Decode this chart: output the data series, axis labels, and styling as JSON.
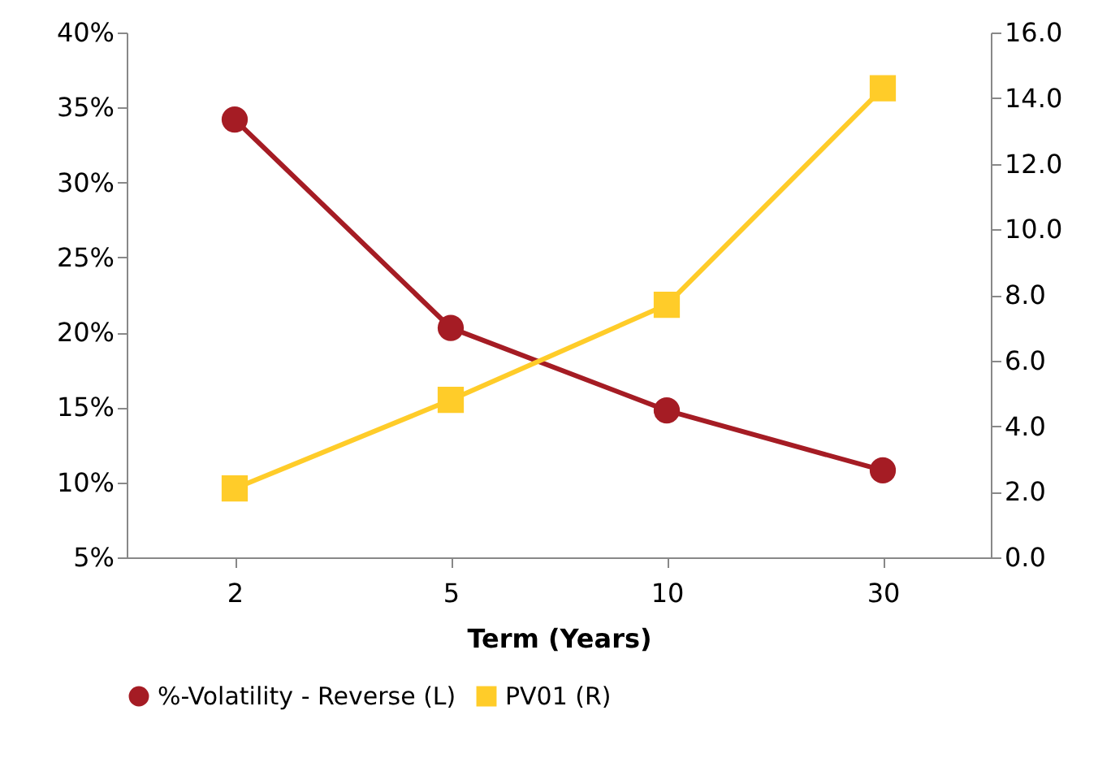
{
  "chart_data": {
    "type": "line",
    "xlabel": "Term (Years)",
    "categories": [
      "2",
      "5",
      "10",
      "30"
    ],
    "series": [
      {
        "name": "%-Volatility - Reverse (L)",
        "color": "#a51c24",
        "marker": "circle",
        "values": [
          34.2,
          20.3,
          14.8,
          10.8
        ]
      },
      {
        "name": "PV01 (R)",
        "color": "#ffcc29",
        "marker": "square",
        "axis": "y2",
        "values": [
          2.1,
          4.8,
          7.7,
          14.3
        ]
      }
    ],
    "ylim": [
      5,
      40
    ],
    "yticks": [
      {
        "value": 5,
        "label": "5%"
      },
      {
        "value": 10,
        "label": "10%"
      },
      {
        "value": 15,
        "label": "15%"
      },
      {
        "value": 20,
        "label": "20%"
      },
      {
        "value": 25,
        "label": "25%"
      },
      {
        "value": 30,
        "label": "30%"
      },
      {
        "value": 35,
        "label": "35%"
      },
      {
        "value": 40,
        "label": "40%"
      }
    ],
    "y2lim": [
      0,
      16
    ],
    "y2ticks": [
      {
        "value": 0,
        "label": "0.0"
      },
      {
        "value": 2,
        "label": "2.0"
      },
      {
        "value": 4,
        "label": "4.0"
      },
      {
        "value": 6,
        "label": "6.0"
      },
      {
        "value": 8,
        "label": "8.0"
      },
      {
        "value": 10,
        "label": "10.0"
      },
      {
        "value": 12,
        "label": "12.0"
      },
      {
        "value": 14,
        "label": "14.0"
      },
      {
        "value": 16,
        "label": "16.0"
      }
    ],
    "grid": false,
    "legend": "bottom",
    "line_style": "solid"
  }
}
